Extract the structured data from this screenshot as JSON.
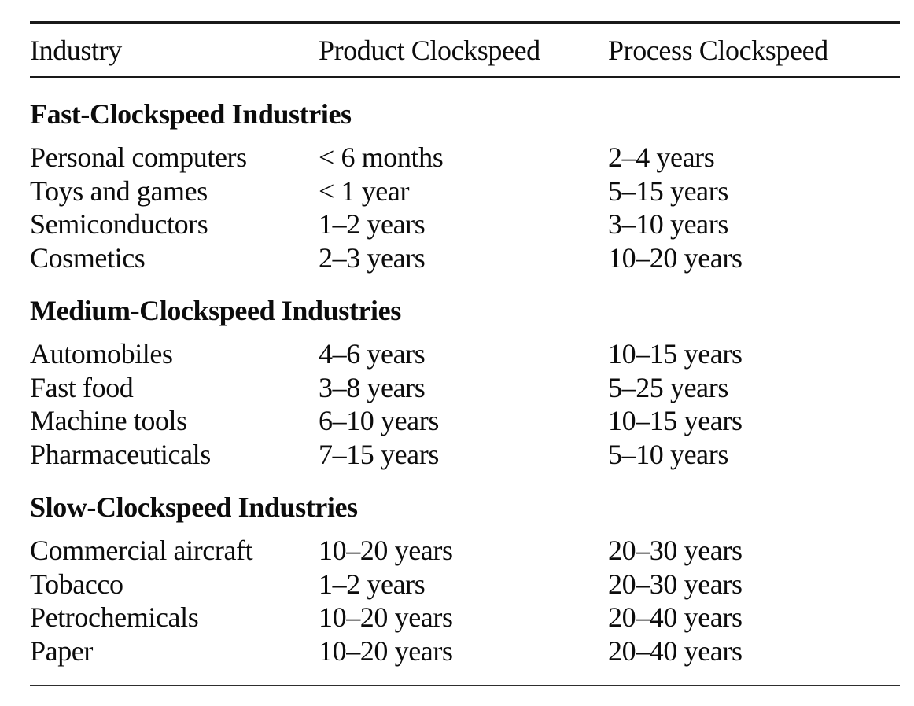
{
  "page": {
    "background_color": "#ffffff",
    "text_color": "#0c0c0c",
    "rule_color": "#191919"
  },
  "table": {
    "headers": {
      "industry": "Industry",
      "product": "Product Clockspeed",
      "process": "Process Clockspeed"
    },
    "sections": [
      {
        "heading": "Fast-Clockspeed Industries",
        "rows": [
          {
            "industry": "Personal computers",
            "product": "< 6 months",
            "process": "2–4 years"
          },
          {
            "industry": "Toys and games",
            "product": "< 1 year",
            "process": "5–15 years"
          },
          {
            "industry": "Semiconductors",
            "product": "1–2 years",
            "process": "3–10 years"
          },
          {
            "industry": "Cosmetics",
            "product": "2–3 years",
            "process": "10–20 years"
          }
        ]
      },
      {
        "heading": "Medium-Clockspeed Industries",
        "rows": [
          {
            "industry": "Automobiles",
            "product": "4–6 years",
            "process": "10–15 years"
          },
          {
            "industry": "Fast food",
            "product": "3–8 years",
            "process": "5–25 years"
          },
          {
            "industry": "Machine tools",
            "product": "6–10 years",
            "process": "10–15 years"
          },
          {
            "industry": "Pharmaceuticals",
            "product": "7–15 years",
            "process": "5–10 years"
          }
        ]
      },
      {
        "heading": "Slow-Clockspeed Industries",
        "rows": [
          {
            "industry": "Commercial aircraft",
            "product": "10–20 years",
            "process": "20–30 years"
          },
          {
            "industry": "Tobacco",
            "product": "1–2 years",
            "process": "20–30 years"
          },
          {
            "industry": "Petrochemicals",
            "product": "10–20 years",
            "process": "20–40 years"
          },
          {
            "industry": "Paper",
            "product": "10–20 years",
            "process": "20–40 years"
          }
        ]
      }
    ]
  }
}
